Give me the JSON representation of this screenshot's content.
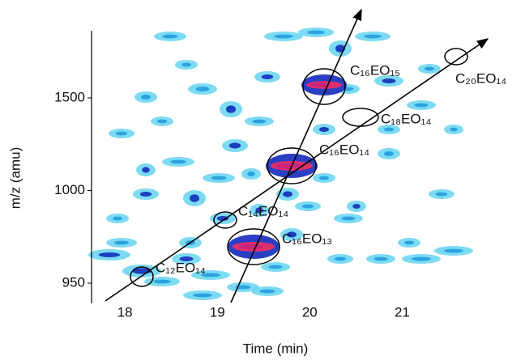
{
  "chart_data": {
    "type": "heatmap",
    "x_label": "Time (min)",
    "y_label": "m/z (amu)",
    "xlim": [
      17.64,
      21.82
    ],
    "xticks": [
      18,
      19,
      20,
      21
    ],
    "y_categories": [
      "950",
      "1000",
      "1500"
    ],
    "annotations": [
      "C₁₂EO₁₄",
      "C₁₄EO₁₄",
      "C₁₆EO₁₃",
      "C₁₆EO₁₄",
      "C₁₆EO₁₅",
      "C₁₈EO₁₄",
      "C₂₀EO₁₄"
    ]
  }
}
